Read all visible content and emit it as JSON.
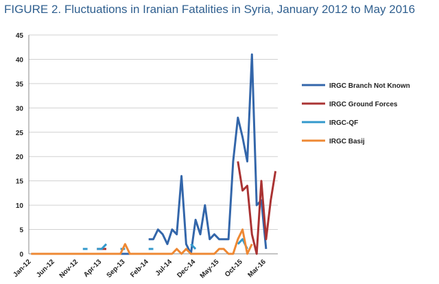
{
  "chart_data": {
    "type": "line",
    "title": "FIGURE 2. Fluctuations in Iranian Fatalities in Syria, January 2012 to May 2016",
    "xlabel": "",
    "ylabel": "",
    "ylim": [
      0,
      45
    ],
    "yticks": [
      0,
      5,
      10,
      15,
      20,
      25,
      30,
      35,
      40,
      45
    ],
    "n_months": 53,
    "x_tick_labels": [
      {
        "index": 0,
        "label": "Jan-12"
      },
      {
        "index": 5,
        "label": "Jun-12"
      },
      {
        "index": 10,
        "label": "Nov-12"
      },
      {
        "index": 15,
        "label": "Apr-13"
      },
      {
        "index": 20,
        "label": "Sep-13"
      },
      {
        "index": 25,
        "label": "Feb-14"
      },
      {
        "index": 30,
        "label": "Jul-14"
      },
      {
        "index": 35,
        "label": "Dec-14"
      },
      {
        "index": 40,
        "label": "May-15"
      },
      {
        "index": 45,
        "label": "Oct-15"
      },
      {
        "index": 50,
        "label": "Mar-16"
      }
    ],
    "legend_position": "right",
    "series": [
      {
        "name": "IRGC Branch Not Known",
        "color": "#3366aa",
        "segments": [
          {
            "start": 0,
            "values": [
              0,
              0,
              0,
              0,
              0,
              0,
              0,
              0,
              0,
              0,
              0,
              0,
              0,
              0,
              0,
              0,
              0,
              0,
              0,
              0,
              0,
              0,
              0,
              0
            ]
          },
          {
            "start": 25,
            "values": [
              3,
              3,
              5,
              4,
              2,
              5,
              4,
              16,
              2,
              0,
              7,
              4,
              10,
              3,
              4,
              3,
              3,
              3,
              19,
              28,
              24,
              19,
              41,
              10,
              11,
              1
            ]
          }
        ]
      },
      {
        "name": "IRGC Ground Forces",
        "color": "#aa3333",
        "segments": [
          {
            "start": 14,
            "values": [
              1,
              1,
              1
            ]
          },
          {
            "start": 44,
            "values": [
              19,
              13,
              14,
              4,
              0,
              15,
              3,
              11,
              17
            ]
          }
        ]
      },
      {
        "name": "IRGC-QF",
        "color": "#3399cc",
        "segments": [
          {
            "start": 11,
            "values": [
              1,
              1
            ]
          },
          {
            "start": 14,
            "values": [
              1,
              1,
              2
            ]
          },
          {
            "start": 19,
            "values": [
              1,
              1
            ]
          },
          {
            "start": 25,
            "values": [
              1,
              1
            ]
          },
          {
            "start": 34,
            "values": [
              2,
              1
            ]
          },
          {
            "start": 44,
            "values": [
              2,
              3,
              1
            ]
          }
        ]
      },
      {
        "name": "IRGC Basij",
        "color": "#ee8833",
        "segments": [
          {
            "start": 0,
            "values": [
              0,
              0,
              0,
              0,
              0,
              0,
              0,
              0,
              0,
              0,
              0,
              0,
              0,
              0,
              0,
              0,
              0,
              0,
              0,
              0,
              2,
              0,
              0,
              0,
              0,
              0,
              0,
              0,
              0,
              0,
              0,
              1,
              0,
              1,
              0,
              0,
              0,
              0,
              0,
              0,
              1,
              1,
              0,
              0,
              3,
              5,
              0,
              2
            ]
          }
        ]
      }
    ]
  }
}
